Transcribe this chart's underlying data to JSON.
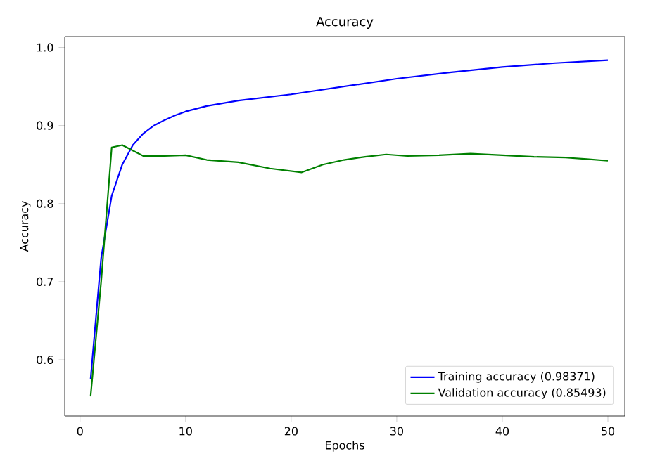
{
  "chart_data": {
    "type": "line",
    "title": "Accuracy",
    "xlabel": "Epochs",
    "ylabel": "Accuracy",
    "xlim": [
      -1.45,
      51.6
    ],
    "ylim": [
      0.528,
      1.014
    ],
    "xticks": [
      0,
      10,
      20,
      30,
      40,
      50
    ],
    "yticks": [
      {
        "value": 0.6,
        "label": "0.6"
      },
      {
        "value": 0.7,
        "label": "0.7"
      },
      {
        "value": 0.8,
        "label": "0.8"
      },
      {
        "value": 0.9,
        "label": "0.9"
      },
      {
        "value": 1.0,
        "label": "1.0"
      }
    ],
    "legend": "bottom right",
    "grid": false,
    "marker": "none",
    "line_style": "solid",
    "series": [
      {
        "name": "Training accuracy (0.98371)",
        "color": "#0000ff",
        "x": [
          1,
          2,
          3,
          4,
          5,
          6,
          7,
          8,
          9,
          10,
          12,
          15,
          20,
          25,
          30,
          35,
          40,
          45,
          50
        ],
        "values": [
          0.575,
          0.73,
          0.81,
          0.85,
          0.875,
          0.89,
          0.9,
          0.907,
          0.913,
          0.918,
          0.925,
          0.932,
          0.94,
          0.95,
          0.96,
          0.968,
          0.975,
          0.98,
          0.98371
        ]
      },
      {
        "name": "Validation accuracy (0.85493)",
        "color": "#008000",
        "x": [
          1,
          2,
          3,
          4,
          5,
          6,
          8,
          10,
          12,
          15,
          18,
          21,
          23,
          25,
          27,
          29,
          31,
          34,
          37,
          40,
          43,
          46,
          48,
          50
        ],
        "values": [
          0.553,
          0.7,
          0.872,
          0.875,
          0.868,
          0.861,
          0.861,
          0.862,
          0.856,
          0.853,
          0.845,
          0.84,
          0.85,
          0.856,
          0.86,
          0.863,
          0.861,
          0.862,
          0.864,
          0.862,
          0.86,
          0.859,
          0.857,
          0.85493
        ]
      }
    ]
  }
}
